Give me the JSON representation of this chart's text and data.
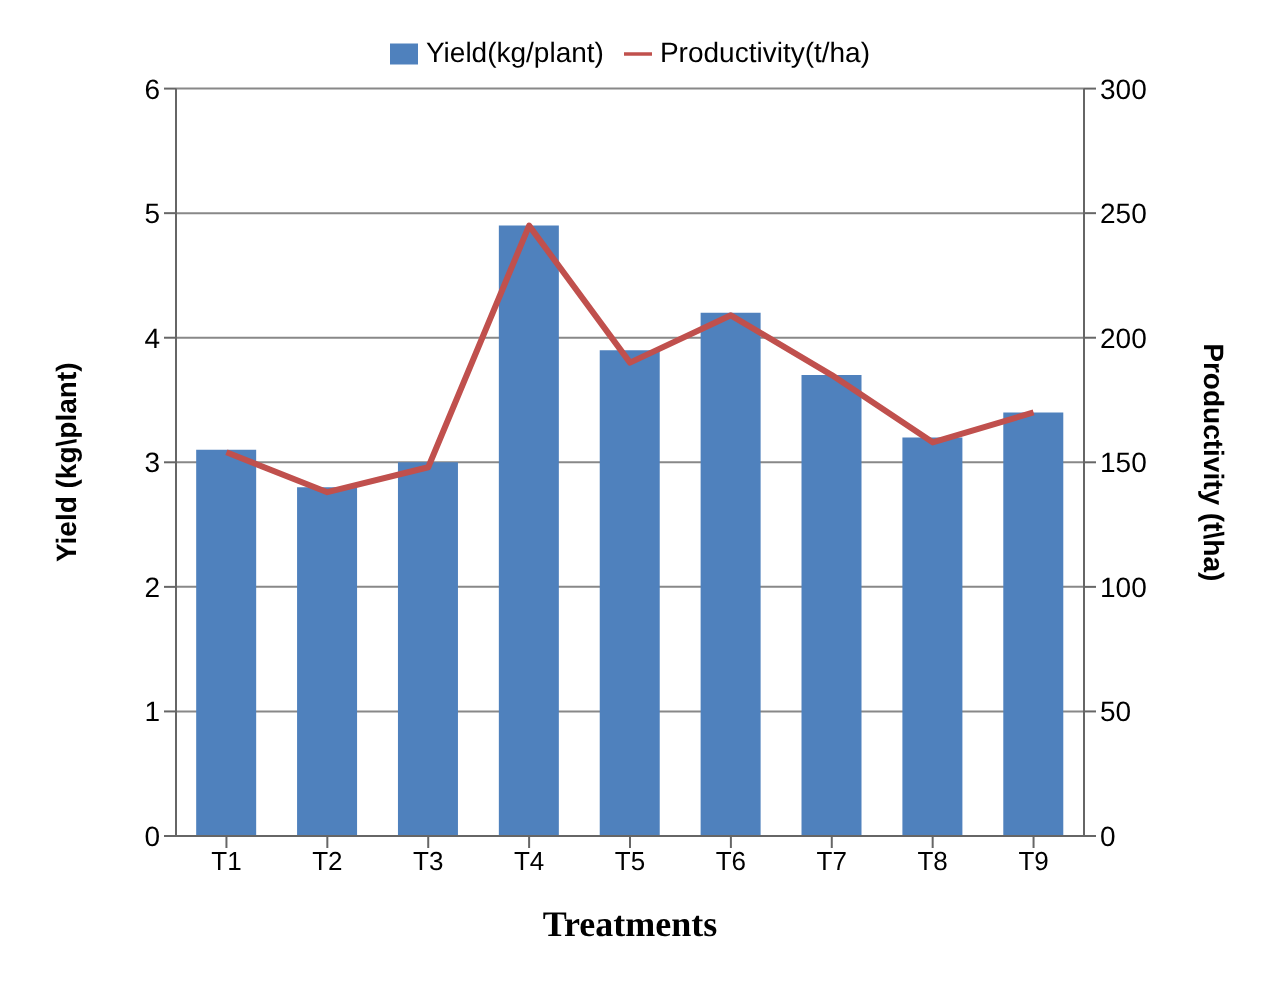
{
  "chart_data": {
    "type": "bar",
    "categories": [
      "T1",
      "T2",
      "T3",
      "T4",
      "T5",
      "T6",
      "T7",
      "T8",
      "T9"
    ],
    "series": [
      {
        "name": "Yield(kg/plant)",
        "color": "#4f81bd",
        "values": [
          3.1,
          2.8,
          3.0,
          4.9,
          3.9,
          4.2,
          3.7,
          3.2,
          3.4
        ]
      },
      {
        "name": "Productivity(t/ha)",
        "type": "line",
        "axis": "y2",
        "color": "#c0504d",
        "values": [
          154,
          138,
          148,
          245,
          190,
          209,
          185,
          158,
          170
        ]
      }
    ],
    "xlabel": "Treatments",
    "ylabel": "Yield (kg\\plant)",
    "y2label": "Productivity (t\\ha)",
    "ylim": [
      0,
      6
    ],
    "yticks": [
      0,
      1,
      2,
      3,
      4,
      5,
      6
    ],
    "y2lim": [
      0,
      300
    ],
    "y2ticks": [
      0,
      50,
      100,
      150,
      200,
      250,
      300
    ],
    "grid": "y",
    "legend": "top",
    "marker": "none",
    "line_style": "solid"
  }
}
